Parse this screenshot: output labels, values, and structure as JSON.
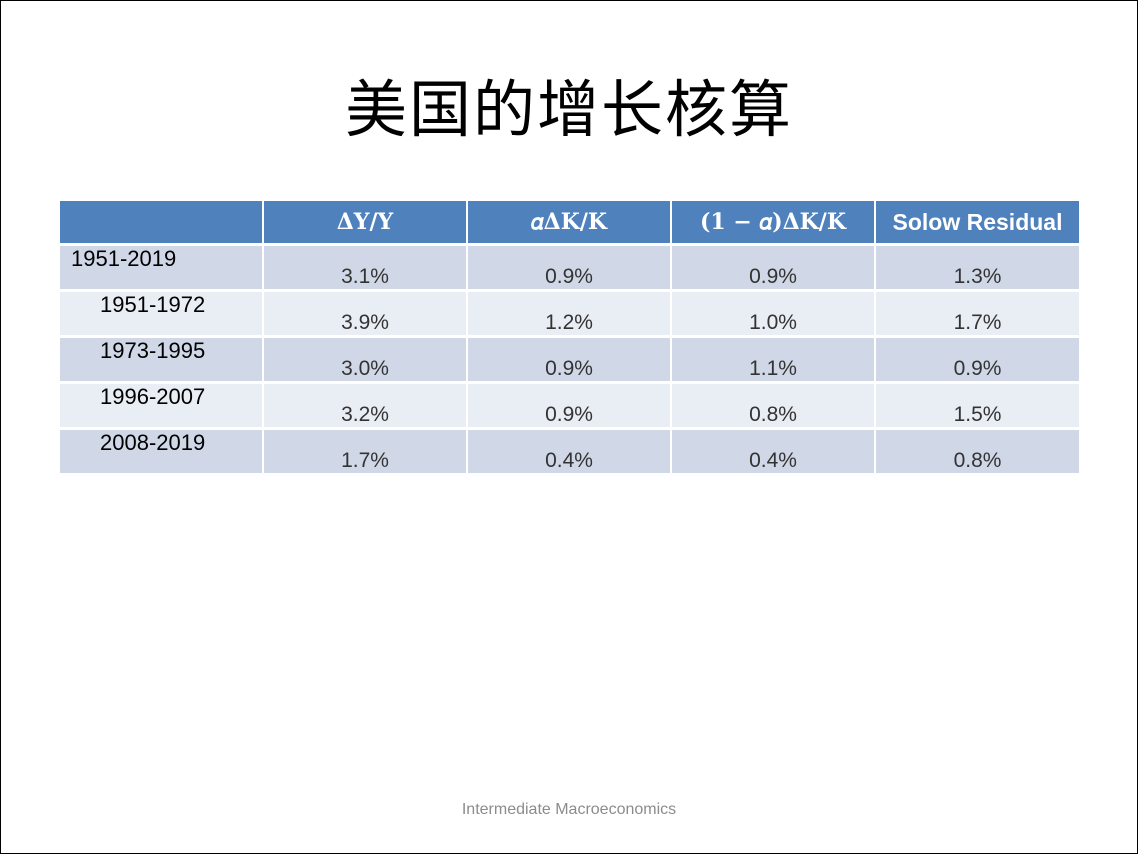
{
  "slide": {
    "title": "美国的增长核算",
    "footer": "Intermediate Macroeconomics"
  },
  "table": {
    "headers": [
      "",
      "ΔY/Y",
      "𝛼ΔK/K",
      "(1 − 𝛼)ΔK/K",
      "Solow Residual"
    ],
    "header_color": "#4f81bd",
    "band_colors": [
      "#d0d8e8",
      "#e9edf4"
    ],
    "rows": [
      {
        "period": "1951-2019",
        "values": [
          "3.1%",
          "0.9%",
          "0.9%",
          "1.3%"
        ]
      },
      {
        "period": "1951-1972",
        "values": [
          "3.9%",
          "1.2%",
          "1.0%",
          "1.7%"
        ]
      },
      {
        "period": "1973-1995",
        "values": [
          "3.0%",
          "0.9%",
          "1.1%",
          "0.9%"
        ]
      },
      {
        "period": "1996-2007",
        "values": [
          "3.2%",
          "0.9%",
          "0.8%",
          "1.5%"
        ]
      },
      {
        "period": "2008-2019",
        "values": [
          "1.7%",
          "0.4%",
          "0.4%",
          "0.8%"
        ]
      }
    ]
  }
}
